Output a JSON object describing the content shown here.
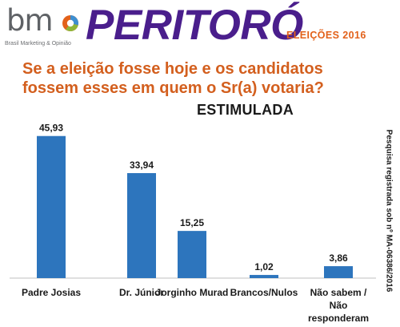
{
  "header": {
    "logo_text": "bm",
    "logo_tagline": "Brasil Marketing & Opinião",
    "logo_colors": [
      "#e2611a",
      "#3d8fd1",
      "#8fb63a"
    ],
    "title": "PERITORÓ",
    "edition": "ELEIÇÕES 2016"
  },
  "question": {
    "line1": "Se a eleição fosse hoje e os candidatos",
    "line2": "fossem esses em quem o Sr(a) votaria?"
  },
  "side_note": "Pesquisa registrada sob nº MA-06386/2016",
  "colors": {
    "title": "#4a1e8c",
    "accent": "#e2611a",
    "bar": "#2d75bd"
  },
  "chart_data": {
    "type": "bar",
    "title": "ESTIMULADA",
    "categories": [
      "Padre Josias",
      "Dr. Júnior",
      "Jorginho Murad",
      "Brancos/Nulos",
      "Não sabem / Não responderam"
    ],
    "category_lines": [
      [
        "Padre Josias"
      ],
      [
        "Dr. Júnior"
      ],
      [
        "Jorginho Murad"
      ],
      [
        "Brancos/Nulos"
      ],
      [
        "Não sabem /",
        "Não",
        "responderam"
      ]
    ],
    "values": [
      45.93,
      33.94,
      15.25,
      1.02,
      3.86
    ],
    "value_labels": [
      "45,93",
      "33,94",
      "15,25",
      "1,02",
      "3,86"
    ],
    "ylim": [
      0,
      50
    ],
    "xlabel": "",
    "ylabel": "",
    "grid": false,
    "legend": "none"
  }
}
